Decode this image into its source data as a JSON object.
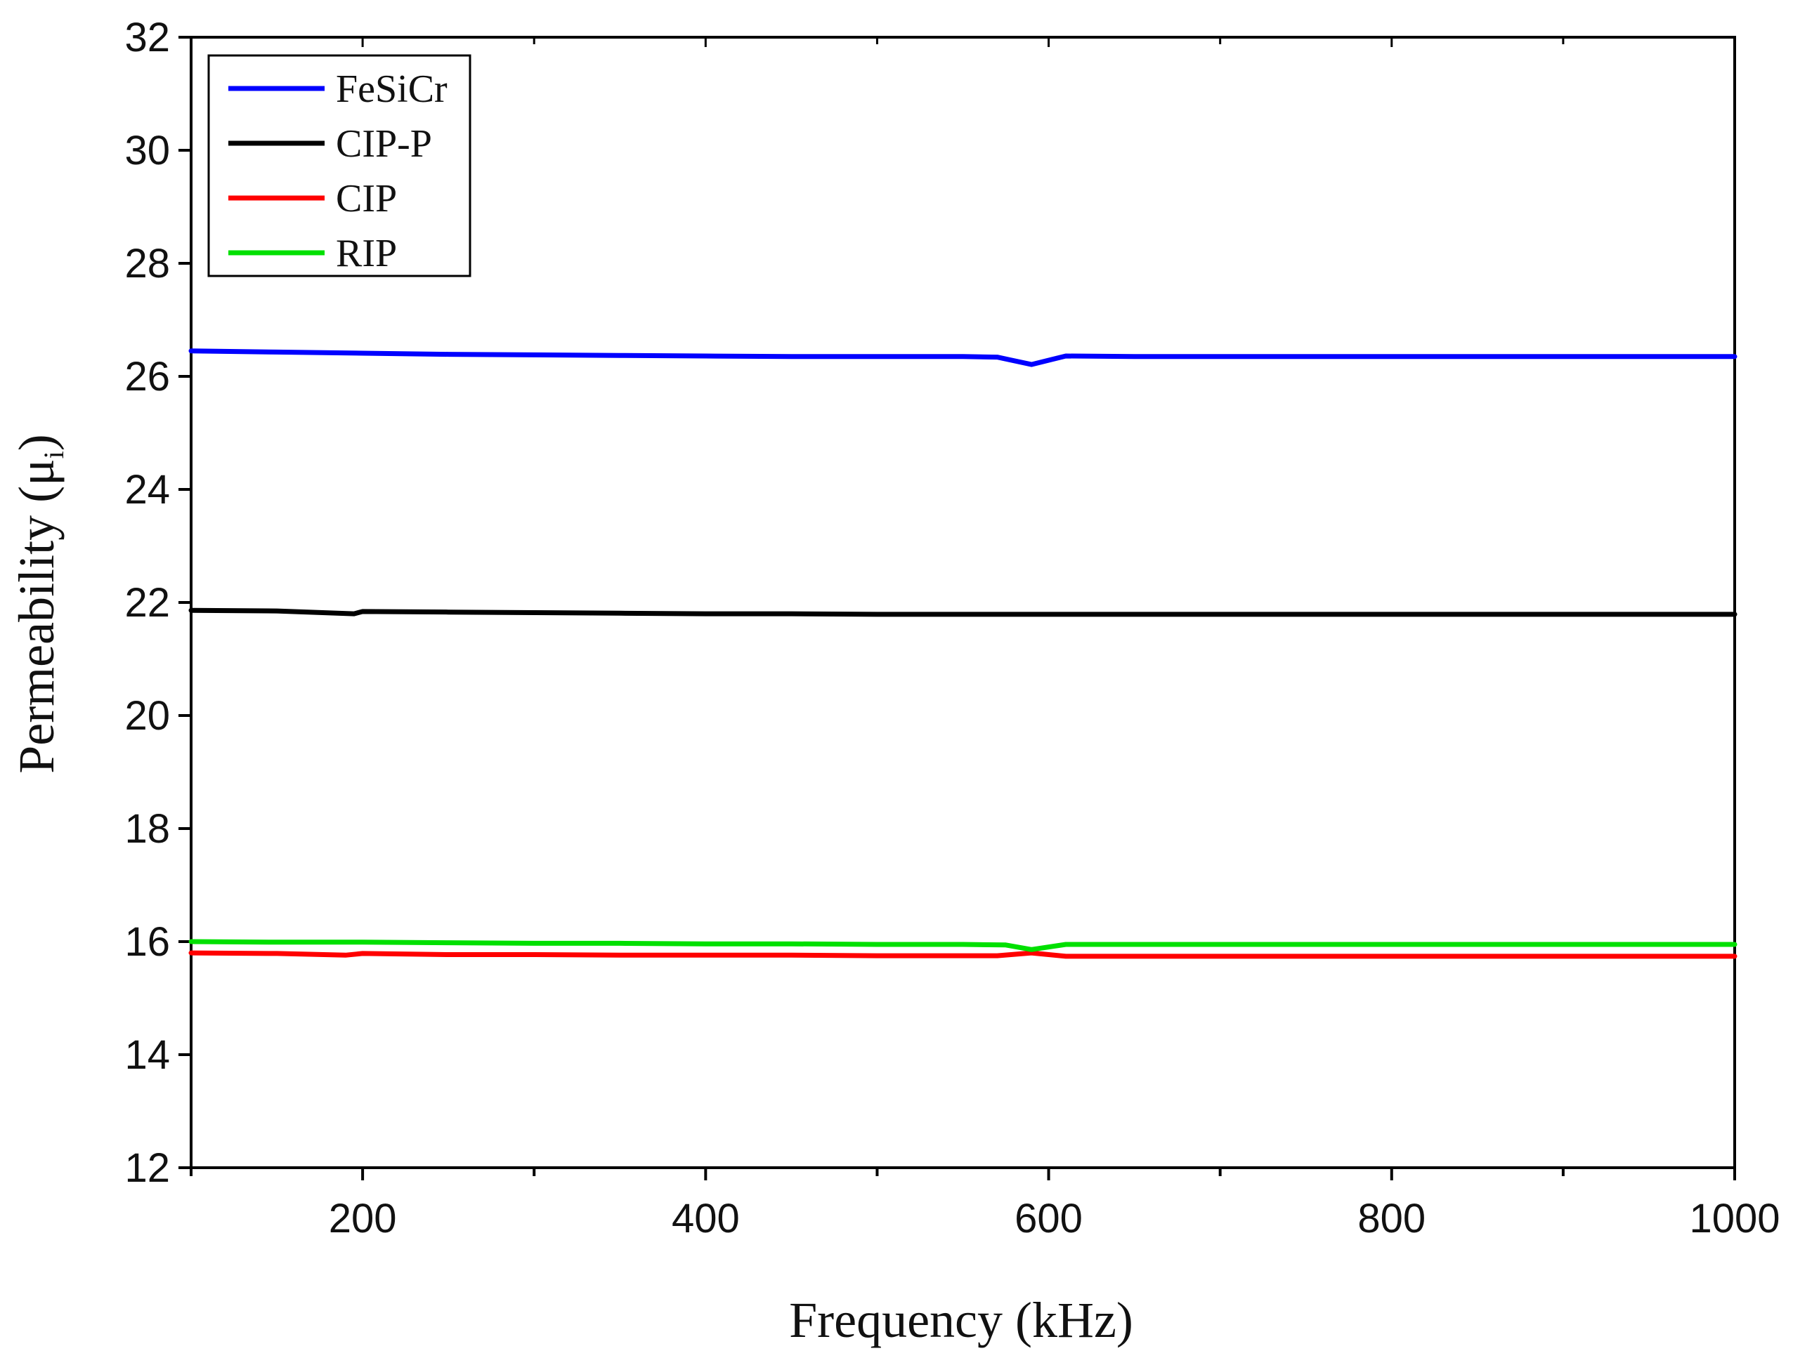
{
  "chart_data": {
    "type": "line",
    "title": "",
    "xlabel": "Frequency (kHz)",
    "ylabel_main": "Permeability (μ",
    "ylabel_sub": "i",
    "ylabel_close": ")",
    "xlim": [
      100,
      1000
    ],
    "ylim": [
      12,
      32
    ],
    "x_major_ticks": [
      200,
      400,
      600,
      800,
      1000
    ],
    "x_major_tick_labels": [
      "200",
      "400",
      "600",
      "800",
      "1000"
    ],
    "x_minor_ticks": [
      100,
      300,
      500,
      700,
      900
    ],
    "y_ticks": [
      12,
      14,
      16,
      18,
      20,
      22,
      24,
      26,
      28,
      30,
      32
    ],
    "y_tick_labels": [
      "12",
      "14",
      "16",
      "18",
      "20",
      "22",
      "24",
      "26",
      "28",
      "30",
      "32"
    ],
    "grid": false,
    "legend_position": "top-left",
    "series": [
      {
        "name": "FeSiCr",
        "color": "#0000ff",
        "x": [
          100,
          150,
          200,
          250,
          300,
          350,
          400,
          450,
          500,
          550,
          570,
          590,
          610,
          650,
          700,
          800,
          900,
          1000
        ],
        "y": [
          26.45,
          26.43,
          26.41,
          26.39,
          26.38,
          26.37,
          26.36,
          26.35,
          26.35,
          26.35,
          26.34,
          26.21,
          26.36,
          26.35,
          26.35,
          26.35,
          26.35,
          26.35
        ]
      },
      {
        "name": "CIP-P",
        "color": "#000000",
        "x": [
          100,
          150,
          195,
          200,
          250,
          300,
          350,
          400,
          450,
          500,
          600,
          700,
          800,
          900,
          1000
        ],
        "y": [
          21.86,
          21.85,
          21.8,
          21.84,
          21.83,
          21.82,
          21.81,
          21.8,
          21.8,
          21.79,
          21.79,
          21.79,
          21.79,
          21.79,
          21.79
        ]
      },
      {
        "name": "CIP",
        "color": "#ff0000",
        "x": [
          100,
          150,
          190,
          200,
          250,
          300,
          350,
          400,
          450,
          500,
          570,
          590,
          610,
          700,
          800,
          900,
          1000
        ],
        "y": [
          15.8,
          15.79,
          15.76,
          15.79,
          15.77,
          15.77,
          15.76,
          15.76,
          15.76,
          15.75,
          15.75,
          15.8,
          15.74,
          15.74,
          15.74,
          15.74,
          15.74
        ]
      },
      {
        "name": "RIP",
        "color": "#00e000",
        "x": [
          100,
          150,
          200,
          250,
          300,
          350,
          400,
          450,
          500,
          550,
          575,
          590,
          610,
          650,
          700,
          800,
          900,
          1000
        ],
        "y": [
          16.0,
          15.99,
          15.99,
          15.98,
          15.97,
          15.97,
          15.96,
          15.96,
          15.95,
          15.95,
          15.94,
          15.86,
          15.95,
          15.95,
          15.95,
          15.95,
          15.95,
          15.95
        ]
      }
    ]
  }
}
